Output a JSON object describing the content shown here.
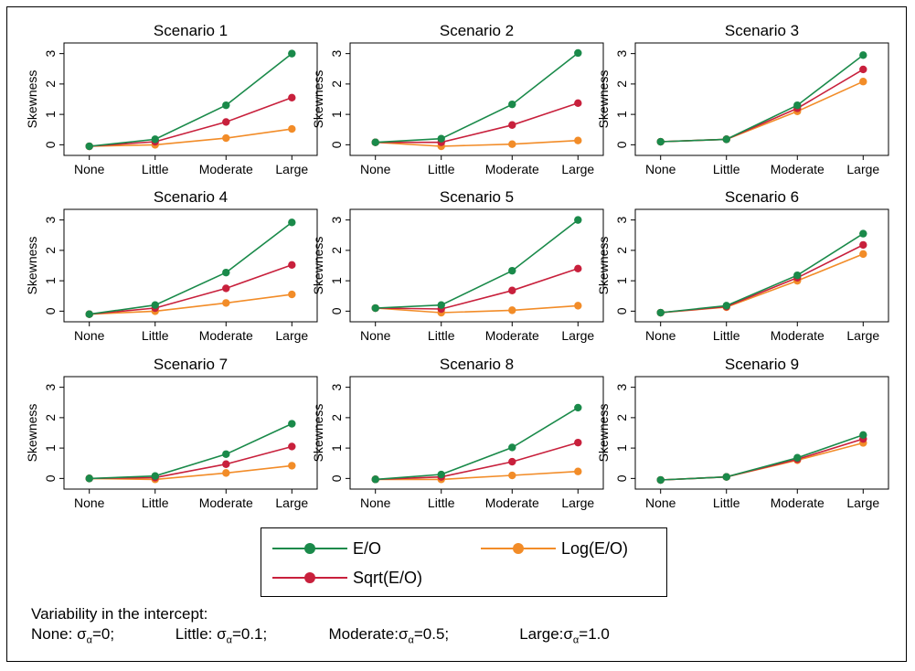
{
  "chart_data": {
    "type": "line",
    "panel_titles": [
      "Scenario 1",
      "Scenario 2",
      "Scenario 3",
      "Scenario 4",
      "Scenario 5",
      "Scenario 6",
      "Scenario 7",
      "Scenario 8",
      "Scenario 9"
    ],
    "categories": [
      "None",
      "Little",
      "Moderate",
      "Large"
    ],
    "ylabel": "Skewness",
    "yticks": [
      "0",
      "1",
      "2",
      "3"
    ],
    "ylim": [
      -0.35,
      3.35
    ],
    "grid": false,
    "legend_position": "bottom",
    "series_meta": [
      {
        "key": "eo",
        "name": "E/O",
        "color": "#1a8a4a"
      },
      {
        "key": "log",
        "name": "Log(E/O)",
        "color": "#f28c28"
      },
      {
        "key": "sqrt",
        "name": "Sqrt(E/O)",
        "color": "#c8203c"
      }
    ],
    "panels": [
      {
        "eo": [
          -0.05,
          0.18,
          1.3,
          3.0
        ],
        "sqrt": [
          -0.05,
          0.1,
          0.75,
          1.55
        ],
        "log": [
          -0.05,
          0.0,
          0.22,
          0.52
        ]
      },
      {
        "eo": [
          0.08,
          0.2,
          1.33,
          3.02
        ],
        "sqrt": [
          0.08,
          0.08,
          0.65,
          1.37
        ],
        "log": [
          0.08,
          -0.05,
          0.02,
          0.14
        ]
      },
      {
        "eo": [
          0.1,
          0.18,
          1.3,
          2.95
        ],
        "sqrt": [
          0.1,
          0.18,
          1.2,
          2.48
        ],
        "log": [
          0.1,
          0.18,
          1.1,
          2.08
        ]
      },
      {
        "eo": [
          -0.1,
          0.2,
          1.27,
          2.92
        ],
        "sqrt": [
          -0.1,
          0.1,
          0.75,
          1.52
        ],
        "log": [
          -0.1,
          0.0,
          0.27,
          0.55
        ]
      },
      {
        "eo": [
          0.1,
          0.2,
          1.33,
          3.0
        ],
        "sqrt": [
          0.1,
          0.07,
          0.68,
          1.4
        ],
        "log": [
          0.1,
          -0.05,
          0.03,
          0.18
        ]
      },
      {
        "eo": [
          -0.05,
          0.18,
          1.18,
          2.55
        ],
        "sqrt": [
          -0.05,
          0.15,
          1.1,
          2.18
        ],
        "log": [
          -0.05,
          0.13,
          1.0,
          1.88
        ]
      },
      {
        "eo": [
          0.0,
          0.08,
          0.8,
          1.8
        ],
        "sqrt": [
          0.0,
          0.03,
          0.47,
          1.05
        ],
        "log": [
          0.0,
          -0.03,
          0.18,
          0.42
        ]
      },
      {
        "eo": [
          -0.03,
          0.13,
          1.02,
          2.33
        ],
        "sqrt": [
          -0.03,
          0.05,
          0.55,
          1.18
        ],
        "log": [
          -0.03,
          -0.03,
          0.1,
          0.23
        ]
      },
      {
        "eo": [
          -0.05,
          0.05,
          0.68,
          1.43
        ],
        "sqrt": [
          -0.05,
          0.05,
          0.63,
          1.3
        ],
        "log": [
          -0.05,
          0.05,
          0.6,
          1.17
        ]
      }
    ]
  },
  "note": {
    "heading": "Variability in the intercept:",
    "items": [
      {
        "pre": "None: σ",
        "sub": "α",
        "post": "=0;"
      },
      {
        "pre": "Little: σ",
        "sub": "α",
        "post": "=0.1;"
      },
      {
        "pre": "Moderate:σ",
        "sub": "α",
        "post": "=0.5;"
      },
      {
        "pre": "Large:σ",
        "sub": "α",
        "post": "=1.0"
      }
    ]
  }
}
